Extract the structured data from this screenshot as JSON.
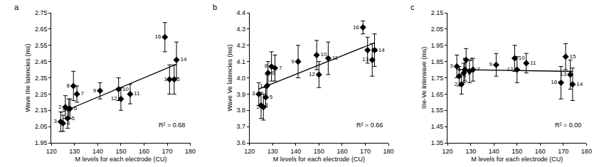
{
  "chart_data": [
    {
      "type": "scatter",
      "panel": "a",
      "x_label": "M levels for each electrode (CU)",
      "y_label": "Wave IIIe latencies (ms)",
      "annotation": "R² = 0.68",
      "labels": [
        "1",
        "2",
        "3",
        "4",
        "5",
        "6",
        "7",
        "8",
        "9",
        "10",
        "11",
        "12",
        "13",
        "14",
        "15",
        "16"
      ],
      "x": [
        127.5,
        126,
        124,
        125,
        127,
        128,
        131,
        129.5,
        141,
        149,
        154,
        150,
        173,
        174,
        171,
        169
      ],
      "values": [
        2.16,
        2.17,
        2.08,
        2.07,
        2.1,
        2.16,
        2.25,
        2.3,
        2.27,
        2.28,
        2.25,
        2.22,
        2.34,
        2.46,
        2.34,
        2.6
      ],
      "errors": [
        0.06,
        0.07,
        0.06,
        0.05,
        0.06,
        0.06,
        0.05,
        0.09,
        0.05,
        0.07,
        0.06,
        0.07,
        0.09,
        0.11,
        0.09,
        0.09
      ],
      "xlim": [
        120,
        180
      ],
      "xticks": [
        120,
        130,
        140,
        150,
        160,
        170,
        180
      ],
      "ylim": [
        1.95,
        2.75
      ],
      "yticks": [
        1.95,
        2.05,
        2.15,
        2.25,
        2.35,
        2.45,
        2.55,
        2.65,
        2.75
      ],
      "color": "#000000",
      "marker": "diamond"
    },
    {
      "type": "scatter",
      "panel": "b",
      "x_label": "M levels for each electrode (CU)",
      "y_label": "Wave Ve latencies (ms)",
      "annotation": "R² = 0.66",
      "labels": [
        "1",
        "2",
        "3",
        "4",
        "5",
        "6",
        "7",
        "8",
        "9",
        "10",
        "11",
        "12",
        "13",
        "14",
        "15",
        "16"
      ],
      "x": [
        127.5,
        126,
        124,
        125,
        127,
        128,
        131,
        129.5,
        141,
        149,
        154,
        150,
        173,
        174,
        171,
        169
      ],
      "values": [
        3.95,
        3.82,
        3.9,
        3.83,
        3.88,
        4.03,
        4.06,
        4.07,
        4.1,
        4.14,
        4.12,
        4.02,
        4.11,
        4.17,
        4.17,
        4.31
      ],
      "errors": [
        0.07,
        0.08,
        0.07,
        0.08,
        0.06,
        0.07,
        0.08,
        0.09,
        0.1,
        0.09,
        0.1,
        0.08,
        0.1,
        0.1,
        0.08,
        0.04
      ],
      "xlim": [
        120,
        180
      ],
      "xticks": [
        120,
        130,
        140,
        150,
        160,
        170,
        180
      ],
      "ylim": [
        3.6,
        4.4
      ],
      "yticks": [
        3.6,
        3.7,
        3.8,
        3.9,
        {
          "value": 4,
          "label": "4.0"
        },
        4.1,
        4.2,
        4.3,
        4.4
      ],
      "color": "#000000",
      "marker": "diamond"
    },
    {
      "type": "scatter",
      "panel": "c",
      "x_label": "M levels for each electrode (CU)",
      "y_label": "IIIe-Ve interwave (ms)",
      "annotation": "R² = 0.00",
      "labels": [
        "1",
        "2",
        "3",
        "4",
        "5",
        "6",
        "7",
        "8",
        "9",
        "10",
        "11",
        "12",
        "13",
        "14",
        "15",
        "16"
      ],
      "x": [
        127.5,
        126,
        124,
        125,
        127,
        128,
        131,
        129.5,
        141,
        149,
        154,
        150,
        173,
        174,
        171,
        169
      ],
      "values": [
        1.8,
        1.71,
        1.82,
        1.76,
        1.78,
        1.86,
        1.8,
        1.79,
        1.83,
        1.87,
        1.84,
        1.8,
        1.77,
        1.71,
        1.88,
        1.72
      ],
      "errors": [
        0.07,
        0.06,
        0.07,
        0.06,
        0.06,
        0.07,
        0.07,
        0.07,
        0.07,
        0.08,
        0.06,
        0.08,
        0.09,
        0.1,
        0.08,
        0.1
      ],
      "xlim": [
        120,
        180
      ],
      "xticks": [
        120,
        130,
        140,
        150,
        160,
        170,
        180
      ],
      "ylim": [
        1.35,
        2.15
      ],
      "yticks": [
        1.35,
        1.45,
        1.55,
        1.65,
        1.75,
        1.85,
        1.95,
        2.05,
        2.15
      ],
      "color": "#000000",
      "marker": "diamond"
    }
  ]
}
